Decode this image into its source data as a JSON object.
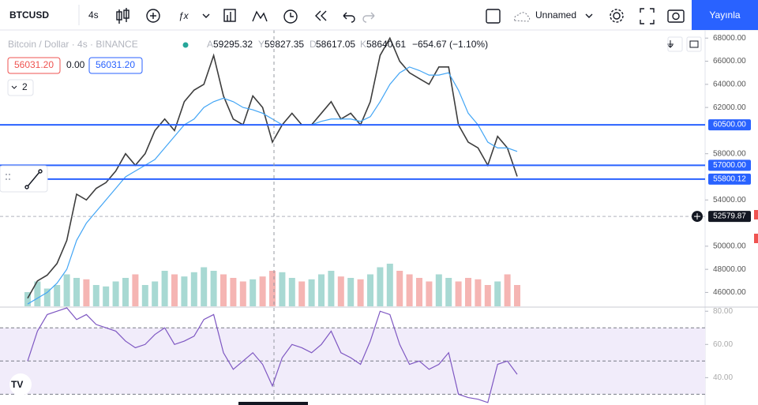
{
  "toolbar": {
    "symbol": "BTCUSD",
    "interval": "4s",
    "layout": "Unnamed",
    "publish": "Yayınla"
  },
  "chart_data": [
    {
      "type": "line",
      "title": "Bitcoin / Dollar · 4s · BINANCE",
      "legend_values": [
        {
          "label": "A",
          "value": 59295.32
        },
        {
          "label": "Y",
          "value": 59827.35
        },
        {
          "label": "D",
          "value": 58617.05
        },
        {
          "label": "K",
          "value": 58640.61
        }
      ],
      "change": "−654.67 (−1.10%)",
      "bid": {
        "value": 56031.2,
        "label": "56031.20"
      },
      "spread": {
        "value": 0,
        "label": "0.00"
      },
      "ask": {
        "value": 56031.2,
        "label": "56031.20"
      },
      "indicators_count": 2,
      "ylim": [
        44800,
        68700
      ],
      "yticks": [
        {
          "value": 68000,
          "label": "68000.00"
        },
        {
          "value": 66000,
          "label": "66000.00"
        },
        {
          "value": 64000,
          "label": "64000.00"
        },
        {
          "value": 62000,
          "label": "62000.00"
        },
        {
          "value": 58000,
          "label": "58000.00"
        },
        {
          "value": 54000,
          "label": "54000.00"
        },
        {
          "value": 50000,
          "label": "50000.00"
        },
        {
          "value": 48000,
          "label": "48000.00"
        },
        {
          "value": 46000,
          "label": "46000.00"
        }
      ],
      "series": [
        {
          "color": "#3d3d3d",
          "values": [
            45500,
            47000,
            47500,
            48500,
            50500,
            54500,
            54000,
            55000,
            55500,
            56500,
            58000,
            57000,
            58000,
            60000,
            61000,
            60000,
            62500,
            63500,
            64000,
            66500,
            63000,
            61000,
            60500,
            63000,
            62000,
            59000,
            60500,
            61500,
            60500,
            60500,
            61500,
            62500,
            61000,
            61500,
            60500,
            62500,
            66500,
            68000,
            66000,
            65000,
            64500,
            64000,
            65500,
            65500,
            60500,
            59000,
            58500,
            57000,
            59500,
            58500,
            56031.2
          ]
        },
        {
          "color": "#42a5f5",
          "values": [
            45000,
            45500,
            46000,
            46800,
            48000,
            50500,
            52000,
            53000,
            54000,
            55000,
            56000,
            56500,
            57000,
            57500,
            58500,
            59500,
            60500,
            61000,
            62000,
            62500,
            62800,
            62500,
            62000,
            61800,
            61500,
            61000,
            60500,
            60500,
            60500,
            60500,
            60800,
            61000,
            61000,
            61000,
            60800,
            61200,
            62500,
            64000,
            65000,
            65500,
            65200,
            64800,
            64800,
            65000,
            63500,
            61500,
            60500,
            59000,
            58500,
            58500,
            58200
          ]
        }
      ],
      "volume": {
        "ylim": [
          0,
          100
        ],
        "up_color": "#a8d9d3",
        "down_color": "#f5b5b3",
        "values": [
          20,
          35,
          25,
          30,
          45,
          40,
          38,
          30,
          28,
          35,
          40,
          45,
          30,
          35,
          50,
          45,
          42,
          48,
          55,
          50,
          45,
          40,
          35,
          38,
          42,
          50,
          48,
          40,
          35,
          38,
          45,
          50,
          42,
          40,
          38,
          45,
          55,
          60,
          50,
          45,
          40,
          35,
          45,
          40,
          35,
          40,
          38,
          30,
          35,
          45,
          30
        ]
      },
      "price_lines": [
        {
          "value": 60500,
          "label": "60500.00",
          "color": "#2962ff",
          "style": "solid"
        },
        {
          "value": 57000,
          "label": "57000.00",
          "color": "#2962ff",
          "style": "solid"
        },
        {
          "value": 55800.12,
          "label": "55800.12",
          "color": "#2962ff",
          "style": "solid"
        },
        {
          "value": 52579.87,
          "label": "52579.87",
          "color": "#131722",
          "style": "dashed"
        }
      ]
    },
    {
      "type": "line",
      "ylim": [
        24,
        82
      ],
      "yticks": [
        {
          "value": 80,
          "label": "80.00"
        },
        {
          "value": 60,
          "label": "60.00"
        },
        {
          "value": 40,
          "label": "40.00"
        }
      ],
      "levels": [
        30,
        50,
        70
      ],
      "band_color": "#f1ecfa",
      "series": [
        {
          "color": "#7e57c2",
          "values": [
            50,
            68,
            78,
            80,
            82,
            75,
            78,
            72,
            70,
            68,
            62,
            58,
            60,
            66,
            70,
            60,
            62,
            65,
            75,
            78,
            55,
            45,
            50,
            55,
            48,
            35,
            52,
            60,
            58,
            55,
            60,
            68,
            55,
            52,
            48,
            62,
            80,
            78,
            60,
            48,
            50,
            45,
            48,
            55,
            30,
            28,
            27,
            25,
            48,
            50,
            42
          ]
        }
      ]
    }
  ]
}
